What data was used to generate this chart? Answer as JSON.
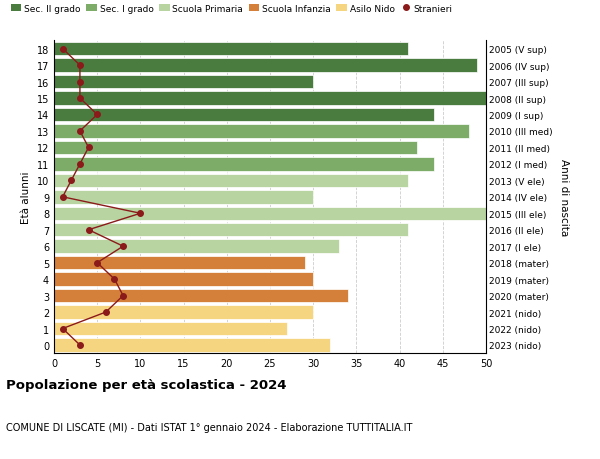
{
  "ages": [
    18,
    17,
    16,
    15,
    14,
    13,
    12,
    11,
    10,
    9,
    8,
    7,
    6,
    5,
    4,
    3,
    2,
    1,
    0
  ],
  "years": [
    "2005 (V sup)",
    "2006 (IV sup)",
    "2007 (III sup)",
    "2008 (II sup)",
    "2009 (I sup)",
    "2010 (III med)",
    "2011 (II med)",
    "2012 (I med)",
    "2013 (V ele)",
    "2014 (IV ele)",
    "2015 (III ele)",
    "2016 (II ele)",
    "2017 (I ele)",
    "2018 (mater)",
    "2019 (mater)",
    "2020 (mater)",
    "2021 (nido)",
    "2022 (nido)",
    "2023 (nido)"
  ],
  "bar_values": [
    41,
    49,
    30,
    50,
    44,
    48,
    42,
    44,
    41,
    30,
    50,
    41,
    33,
    29,
    30,
    34,
    30,
    27,
    32
  ],
  "bar_colors": [
    "#4a7c3f",
    "#4a7c3f",
    "#4a7c3f",
    "#4a7c3f",
    "#4a7c3f",
    "#7dab68",
    "#7dab68",
    "#7dab68",
    "#b8d4a0",
    "#b8d4a0",
    "#b8d4a0",
    "#b8d4a0",
    "#b8d4a0",
    "#d4803a",
    "#d4803a",
    "#d4803a",
    "#f5d580",
    "#f5d580",
    "#f5d580"
  ],
  "stranieri": [
    1,
    3,
    3,
    3,
    5,
    3,
    4,
    3,
    2,
    1,
    10,
    4,
    8,
    5,
    7,
    8,
    6,
    1,
    3
  ],
  "stranieri_color": "#8b1a1a",
  "legend_items": [
    {
      "label": "Sec. II grado",
      "color": "#4a7c3f"
    },
    {
      "label": "Sec. I grado",
      "color": "#7dab68"
    },
    {
      "label": "Scuola Primaria",
      "color": "#b8d4a0"
    },
    {
      "label": "Scuola Infanzia",
      "color": "#d4803a"
    },
    {
      "label": "Asilo Nido",
      "color": "#f5d580"
    },
    {
      "label": "Stranieri",
      "color": "#8b1a1a"
    }
  ],
  "right_ylabel": "Anni di nascita",
  "ylabel": "Età alunni",
  "title": "Popolazione per età scolastica - 2024",
  "subtitle": "COMUNE DI LISCATE (MI) - Dati ISTAT 1° gennaio 2024 - Elaborazione TUTTITALIA.IT",
  "xlim": [
    0,
    50
  ],
  "xticks": [
    0,
    5,
    10,
    15,
    20,
    25,
    30,
    35,
    40,
    45,
    50
  ],
  "background_color": "#ffffff",
  "grid_color": "#cccccc"
}
